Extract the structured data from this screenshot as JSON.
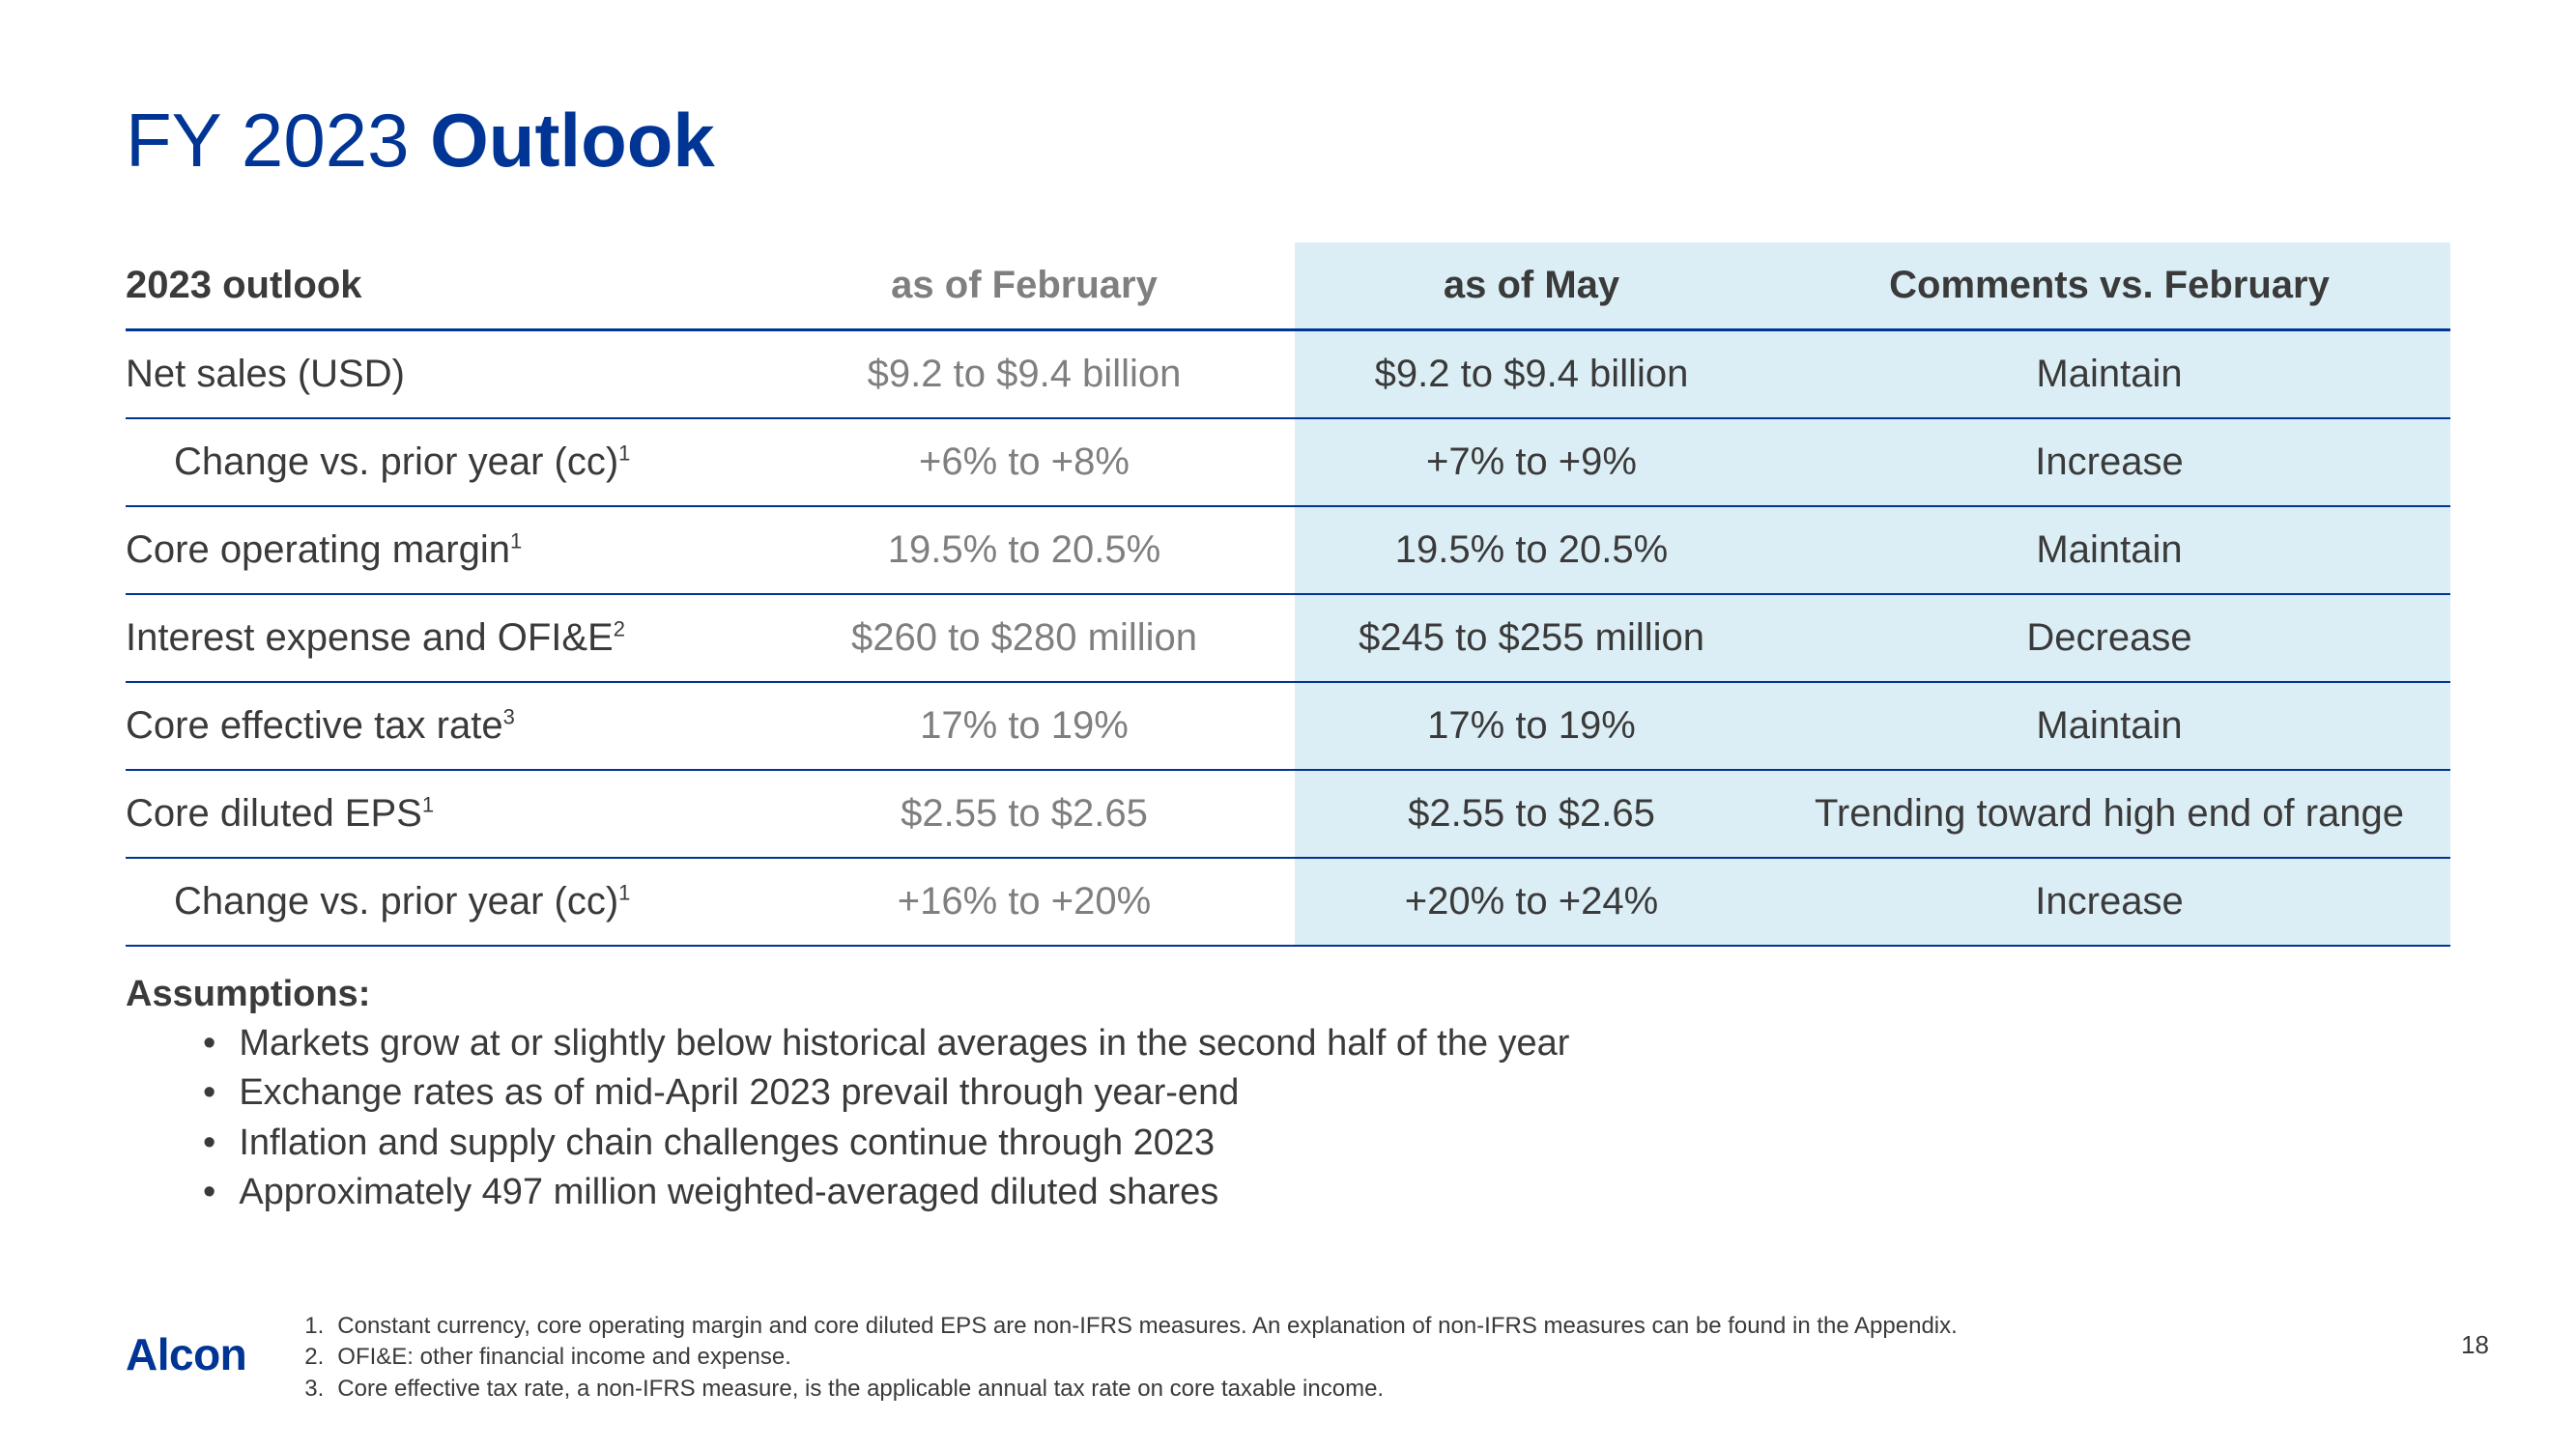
{
  "title_prefix": "FY 2023 ",
  "title_bold": "Outlook",
  "headers": {
    "c1": "2023 outlook",
    "c2": "as of February",
    "c3": "as of May",
    "c4": "Comments vs. February"
  },
  "rows": [
    {
      "label": "Net sales (USD)",
      "sup": "",
      "indent": false,
      "feb": "$9.2 to $9.4 billion",
      "may": "$9.2 to $9.4 billion",
      "comment": "Maintain"
    },
    {
      "label": "Change vs. prior year (cc)",
      "sup": "1",
      "indent": true,
      "feb": "+6% to +8%",
      "may": "+7% to +9%",
      "comment": "Increase"
    },
    {
      "label": "Core operating margin",
      "sup": "1",
      "indent": false,
      "feb": "19.5% to 20.5%",
      "may": "19.5% to 20.5%",
      "comment": "Maintain"
    },
    {
      "label": "Interest expense and OFI&E",
      "sup": "2",
      "indent": false,
      "feb": "$260 to $280 million",
      "may": "$245 to $255 million",
      "comment": "Decrease"
    },
    {
      "label": "Core effective tax rate",
      "sup": "3",
      "indent": false,
      "feb": "17% to 19%",
      "may": "17% to 19%",
      "comment": "Maintain"
    },
    {
      "label": "Core diluted EPS",
      "sup": "1",
      "indent": false,
      "feb": "$2.55 to $2.65",
      "may": "$2.55 to $2.65",
      "comment": "Trending toward high end of range"
    },
    {
      "label": "Change vs. prior year (cc)",
      "sup": "1",
      "indent": true,
      "feb": "+16% to +20%",
      "may": "+20% to +24%",
      "comment": "Increase"
    }
  ],
  "assumptions_label": "Assumptions:",
  "assumptions": [
    "Markets grow at or slightly below historical averages in the second half of the year",
    "Exchange rates as of mid-April 2023 prevail through year-end",
    "Inflation and supply chain challenges continue through 2023",
    "Approximately 497 million weighted-averaged diluted shares"
  ],
  "logo": "Alcon",
  "footnotes": [
    "Constant currency, core operating margin and core diluted EPS are non-IFRS measures.  An explanation of non-IFRS measures can be found in the Appendix.",
    "OFI&E: other financial income and expense.",
    "Core effective tax rate, a non-IFRS measure, is the applicable annual tax rate on core taxable income."
  ],
  "page_number": "18",
  "colors": {
    "brand": "#003595",
    "highlight_bg": "#dceef5",
    "muted": "#7f7f7f",
    "text": "#3a3a3a",
    "background": "#ffffff"
  }
}
